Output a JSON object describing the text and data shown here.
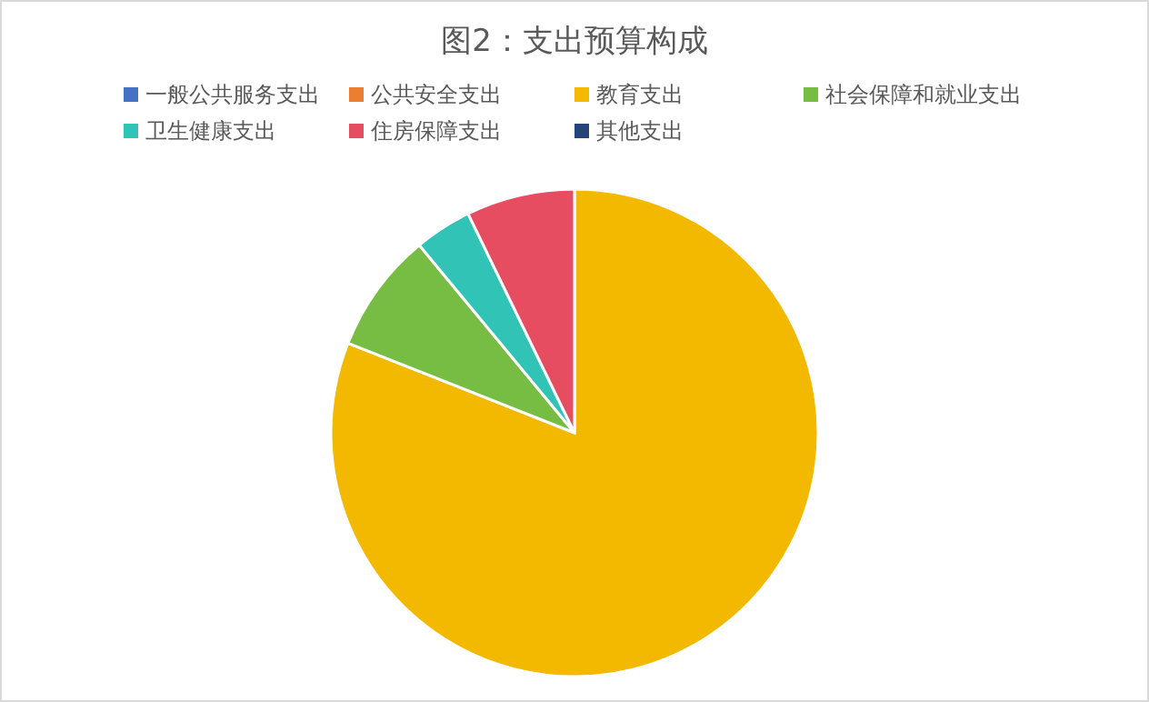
{
  "chart_data": {
    "type": "pie",
    "title": "图2：支出预算构成",
    "categories": [
      "一般公共服务支出",
      "公共安全支出",
      "教育支出",
      "社会保障和就业支出",
      "卫生健康支出",
      "住房保障支出",
      "其他支出"
    ],
    "values": [
      0,
      0,
      81,
      8,
      3.8,
      7.2,
      0
    ],
    "colors": [
      "#4472c4",
      "#ed7d31",
      "#f3b800",
      "#78bd43",
      "#32c3b7",
      "#e64d60",
      "#264478"
    ],
    "legend": "top"
  }
}
